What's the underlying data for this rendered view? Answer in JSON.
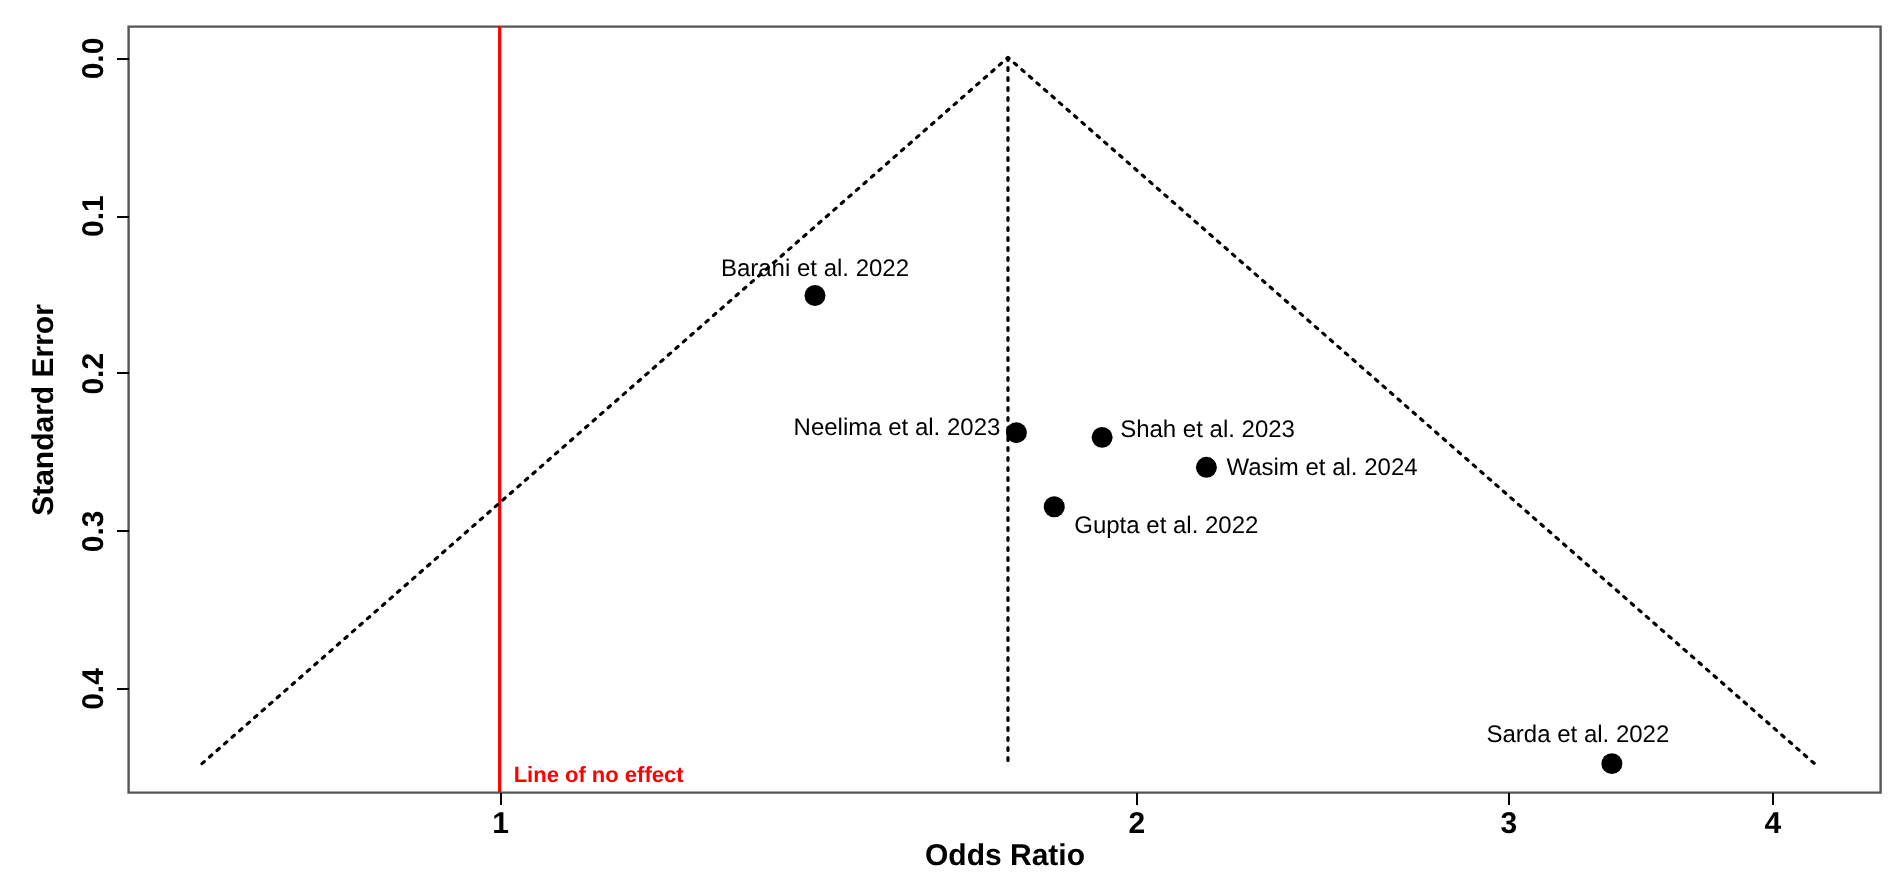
{
  "chart_data": {
    "type": "scatter",
    "xlabel": "Odds Ratio",
    "ylabel": "Standard Error",
    "log": "x",
    "xlim": [
      0.667,
      4.5
    ],
    "xticks": [
      1,
      2,
      3,
      4
    ],
    "ylim": [
      0.466,
      -0.02
    ],
    "yticks": [
      {
        "value": 0,
        "label": "0.0"
      },
      0.1,
      0.2,
      0.3,
      0.4
    ],
    "grid": false,
    "marker": "circle",
    "series": [
      {
        "color": "#000000",
        "x": [
          1.41,
          1.756,
          1.928,
          2.16,
          1.83,
          3.36
        ],
        "values": [
          0.151,
          0.238,
          0.241,
          0.26,
          0.285,
          0.448
        ]
      },
      {
        "type": "line",
        "color": "#000000",
        "line_style": "dotted",
        "marker": "none",
        "x": [
          0.723,
          1.74,
          4.19
        ],
        "values": [
          0.448,
          0,
          0.448
        ]
      },
      {
        "type": "line",
        "color": "#000000",
        "line_style": "dotted",
        "marker": "none",
        "x": [
          1.74,
          1.74
        ],
        "values": [
          0,
          0.448
        ]
      }
    ],
    "ref_lines": [
      {
        "axis": "x",
        "value": 1,
        "label": "Line of no effect",
        "color": "#ff0000",
        "line_style": "solid"
      }
    ],
    "annotations": [
      {
        "text": "Barani et al. 2022",
        "x": 1.41,
        "y": 0.151
      },
      {
        "text": "Neelima et al. 2023",
        "x": 1.756,
        "y": 0.238
      },
      {
        "text": "Shah et al. 2023",
        "x": 1.928,
        "y": 0.241
      },
      {
        "text": "Wasim et al. 2024",
        "x": 2.16,
        "y": 0.26
      },
      {
        "text": "Gupta et al. 2022",
        "x": 1.83,
        "y": 0.285
      },
      {
        "text": "Sarda et al.  2022",
        "x": 3.36,
        "y": 0.448
      }
    ]
  }
}
